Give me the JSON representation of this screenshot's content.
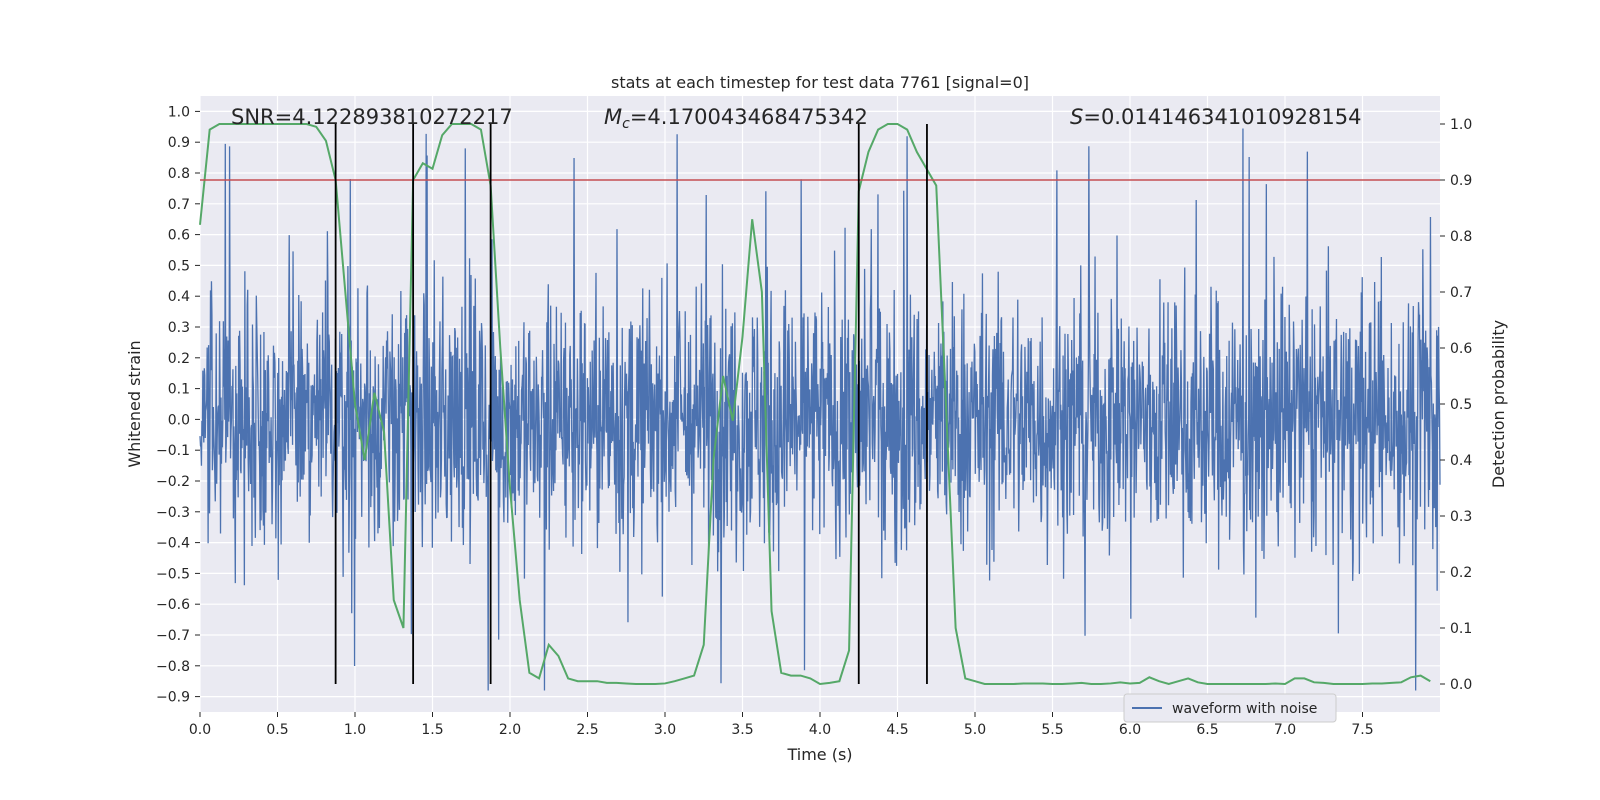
{
  "chart_data": {
    "type": "line",
    "title": "stats at each timestep for test data 7761 [signal=0]",
    "xlabel": "Time (s)",
    "ylabel_left": "Whitened strain",
    "ylabel_right": "Detection probability",
    "xlim": [
      0,
      8
    ],
    "ylim_left": [
      -0.95,
      1.05
    ],
    "ylim_right": [
      -0.05,
      1.05
    ],
    "x_ticks": [
      "0.0",
      "0.5",
      "1.0",
      "1.5",
      "2.0",
      "2.5",
      "3.0",
      "3.5",
      "4.0",
      "4.5",
      "5.0",
      "5.5",
      "6.0",
      "6.5",
      "7.0",
      "7.5"
    ],
    "y_ticks_left": [
      "1.0",
      "0.9",
      "0.8",
      "0.7",
      "0.6",
      "0.5",
      "0.4",
      "0.3",
      "0.2",
      "0.1",
      "0.0",
      "-0.1",
      "-0.2",
      "-0.3",
      "-0.4",
      "-0.5",
      "-0.6",
      "-0.7",
      "-0.8",
      "-0.9"
    ],
    "y_ticks_right": [
      "1.0",
      "0.9",
      "0.8",
      "0.7",
      "0.6",
      "0.5",
      "0.4",
      "0.3",
      "0.2",
      "0.1",
      "0.0"
    ],
    "annotations": {
      "snr": "SNR=4.122893810272217",
      "mc_symbol": "M",
      "mc_sub": "c",
      "mc_value": "=4.170043468475342",
      "s_symbol": "S",
      "s_value": "=0.014146341010928154"
    },
    "legend": [
      "waveform with noise"
    ],
    "threshold_right": 0.9,
    "vertical_lines_x": [
      0.875,
      1.375,
      1.875,
      4.25,
      4.69
    ],
    "series": [
      {
        "name": "waveform with noise",
        "axis": "left",
        "color": "#4c72b0",
        "description": "dense noisy whitened strain samples, roughly within ±0.6 with spikes up to 1.0"
      },
      {
        "name": "detection probability",
        "axis": "right",
        "color": "#55a868",
        "x": [
          0.0,
          0.0625,
          0.125,
          0.1875,
          0.25,
          0.3125,
          0.375,
          0.4375,
          0.5,
          0.5625,
          0.625,
          0.6875,
          0.75,
          0.8125,
          0.875,
          0.9375,
          1.0,
          1.0625,
          1.125,
          1.1875,
          1.25,
          1.3125,
          1.375,
          1.4375,
          1.5,
          1.5625,
          1.625,
          1.6875,
          1.75,
          1.8125,
          1.875,
          1.9375,
          2.0,
          2.0625,
          2.125,
          2.1875,
          2.25,
          2.3125,
          2.375,
          2.4375,
          2.5,
          2.5625,
          2.625,
          2.6875,
          2.75,
          2.8125,
          2.875,
          2.9375,
          3.0,
          3.0625,
          3.125,
          3.1875,
          3.25,
          3.3125,
          3.375,
          3.4375,
          3.5,
          3.5625,
          3.625,
          3.6875,
          3.75,
          3.8125,
          3.875,
          3.9375,
          4.0,
          4.0625,
          4.125,
          4.1875,
          4.25,
          4.3125,
          4.375,
          4.4375,
          4.5,
          4.5625,
          4.625,
          4.6875,
          4.75,
          4.8125,
          4.875,
          4.9375,
          5.0,
          5.0625,
          5.125,
          5.1875,
          5.25,
          5.3125,
          5.375,
          5.4375,
          5.5,
          5.5625,
          5.625,
          5.6875,
          5.75,
          5.8125,
          5.875,
          5.9375,
          6.0,
          6.0625,
          6.125,
          6.1875,
          6.25,
          6.3125,
          6.375,
          6.4375,
          6.5,
          6.5625,
          6.625,
          6.6875,
          6.75,
          6.8125,
          6.875,
          6.9375,
          7.0,
          7.0625,
          7.125,
          7.1875,
          7.25,
          7.3125,
          7.375,
          7.4375,
          7.5,
          7.5625,
          7.625,
          7.6875,
          7.75,
          7.8125,
          7.875,
          7.9375
        ],
        "values": [
          0.82,
          0.99,
          1.0,
          1.0,
          1.0,
          1.0,
          1.0,
          1.0,
          1.0,
          1.0,
          1.0,
          1.0,
          0.995,
          0.97,
          0.9,
          0.7,
          0.5,
          0.4,
          0.52,
          0.45,
          0.15,
          0.1,
          0.9,
          0.93,
          0.92,
          0.98,
          1.0,
          1.0,
          1.0,
          0.99,
          0.89,
          0.6,
          0.35,
          0.15,
          0.02,
          0.01,
          0.07,
          0.05,
          0.01,
          0.005,
          0.005,
          0.005,
          0.002,
          0.002,
          0.001,
          0.0,
          0.0,
          0.0,
          0.001,
          0.005,
          0.01,
          0.015,
          0.07,
          0.4,
          0.55,
          0.47,
          0.62,
          0.83,
          0.7,
          0.13,
          0.02,
          0.015,
          0.015,
          0.01,
          0.0,
          0.002,
          0.005,
          0.06,
          0.88,
          0.95,
          0.99,
          1.0,
          1.0,
          0.99,
          0.95,
          0.92,
          0.89,
          0.5,
          0.1,
          0.01,
          0.005,
          0.0,
          0.0,
          0.0,
          0.0,
          0.001,
          0.001,
          0.001,
          0.0,
          0.0,
          0.001,
          0.002,
          0.0,
          0.0,
          0.001,
          0.003,
          0.001,
          0.002,
          0.012,
          0.005,
          0.0,
          0.005,
          0.01,
          0.003,
          0.0,
          0.0,
          0.0,
          0.0,
          0.0,
          0.0,
          0.0,
          0.001,
          0.0,
          0.01,
          0.01,
          0.003,
          0.002,
          0.0,
          0.0,
          0.0,
          0.0,
          0.001,
          0.001,
          0.002,
          0.003,
          0.012,
          0.015,
          0.005
        ]
      }
    ]
  }
}
